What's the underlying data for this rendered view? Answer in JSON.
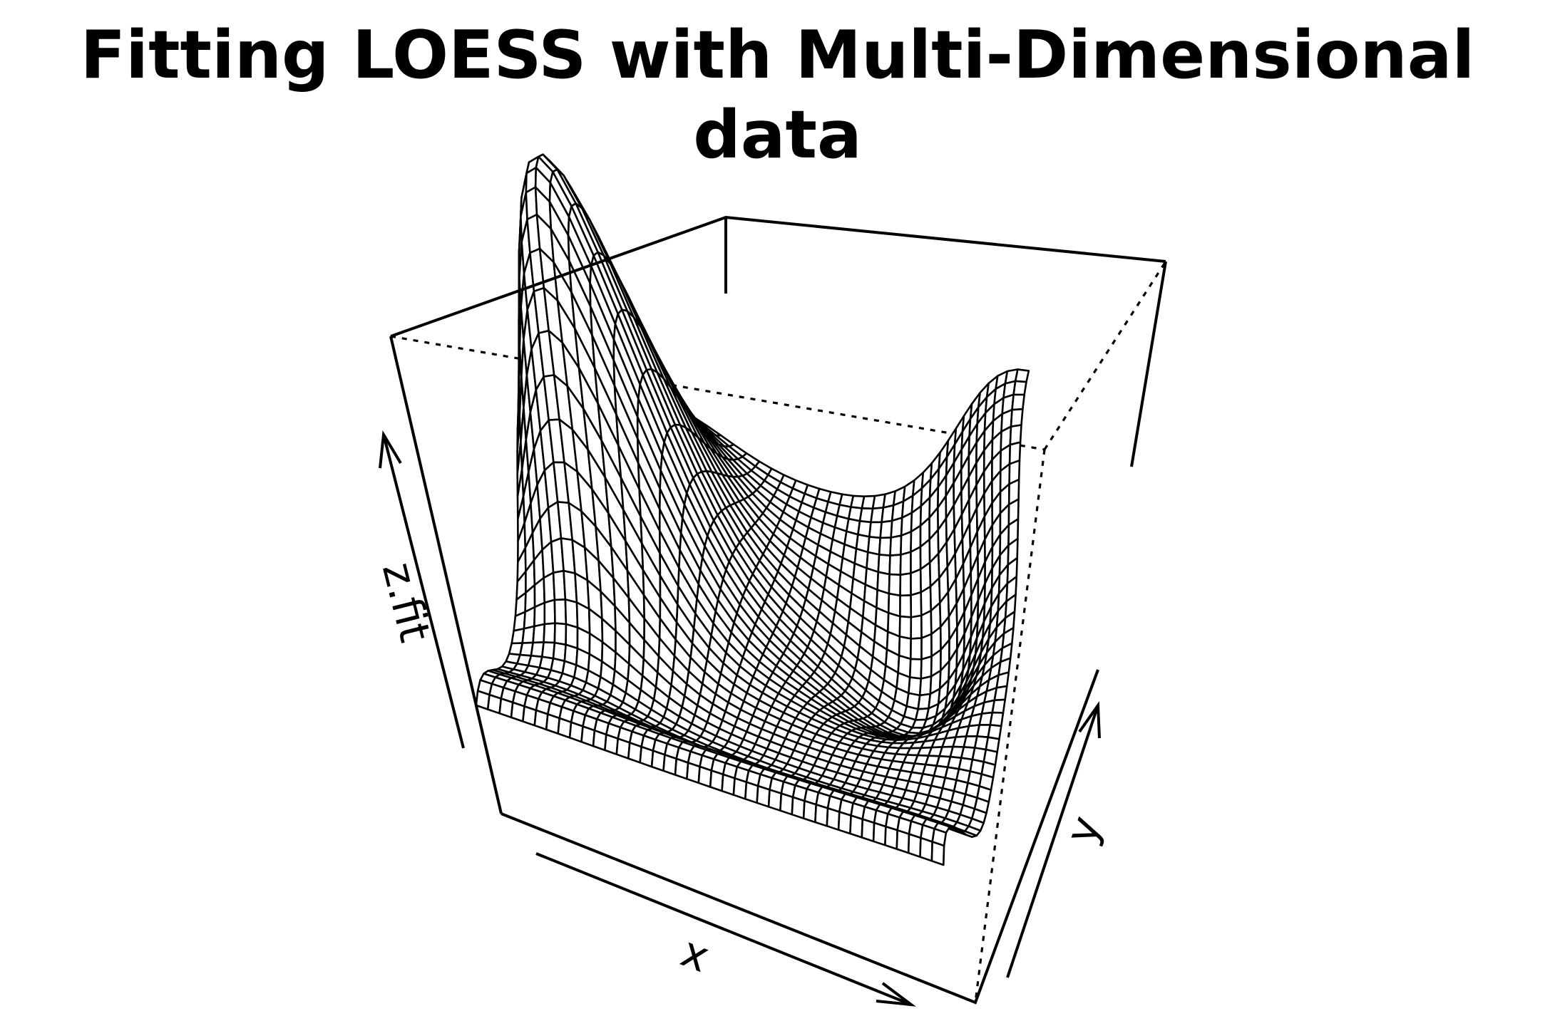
{
  "chart_data": {
    "type": "surface",
    "title": "Fitting LOESS with Multi-Dimensional data",
    "xlabel": "x",
    "ylabel": "y",
    "zlabel": "z.fit",
    "xlim": [
      0,
      1
    ],
    "ylim": [
      0,
      1
    ],
    "zlim": [
      0,
      1
    ],
    "grid_size": 40,
    "features": [
      {
        "kind": "peak",
        "x": 0.15,
        "y": 0.62,
        "height": 0.95
      },
      {
        "kind": "trough",
        "x": 0.75,
        "y": 0.7,
        "depth": -0.32
      },
      {
        "kind": "rise",
        "x": 1.0,
        "y": 1.0,
        "height": 0.55
      }
    ],
    "stroke_color": "#000000",
    "background": "#ffffff"
  }
}
